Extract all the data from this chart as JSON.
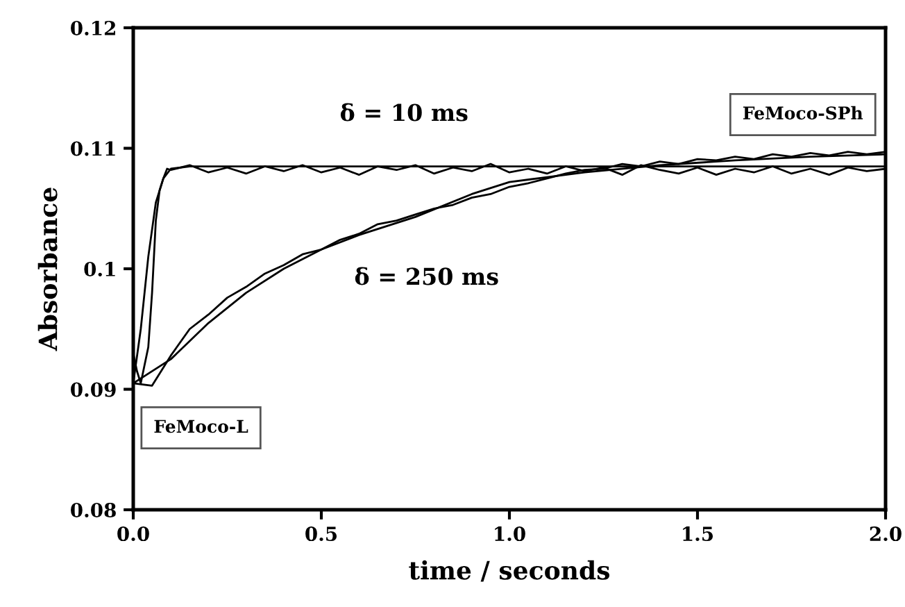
{
  "chart_data": {
    "type": "line",
    "xlabel": "time / seconds",
    "ylabel": "Absorbance",
    "xlim": [
      0,
      2
    ],
    "ylim": [
      0.08,
      0.12
    ],
    "xticks": [
      {
        "value": 0,
        "label": "0.0"
      },
      0.5,
      {
        "value": 1,
        "label": "1.0"
      },
      1.5,
      {
        "value": 2,
        "label": "2.0"
      }
    ],
    "yticks": [
      0.08,
      0.09,
      0.1,
      0.11,
      0.12
    ],
    "grid": false,
    "legend": false,
    "marker": "none",
    "line_style": "solid",
    "series": [
      {
        "color": "#000000",
        "x": [
          0,
          0.01,
          0.02,
          0.03,
          0.04,
          0.05,
          0.06,
          0.07,
          0.08,
          0.09,
          0.1,
          0.15,
          0.2,
          0.25,
          0.3,
          0.35,
          0.4,
          0.45,
          0.5,
          0.55,
          0.6,
          0.65,
          0.7,
          0.75,
          0.8,
          0.85,
          0.9,
          0.95,
          1.0,
          1.05,
          1.1,
          1.15,
          1.2,
          1.25,
          1.3,
          1.35,
          1.4,
          1.45,
          1.5,
          1.55,
          1.6,
          1.65,
          1.7,
          1.75,
          1.8,
          1.85,
          1.9,
          1.95,
          2.0
        ],
        "values": [
          0.093,
          0.0915,
          0.0905,
          0.092,
          0.0935,
          0.098,
          0.104,
          0.1065,
          0.1075,
          0.1083,
          0.1082,
          0.1086,
          0.108,
          0.1084,
          0.1079,
          0.1085,
          0.1081,
          0.1086,
          0.108,
          0.1084,
          0.1078,
          0.1085,
          0.1082,
          0.1086,
          0.1079,
          0.1084,
          0.1081,
          0.1087,
          0.108,
          0.1083,
          0.1079,
          0.1085,
          0.1081,
          0.1084,
          0.1078,
          0.1086,
          0.1082,
          0.1079,
          0.1084,
          0.1078,
          0.1083,
          0.108,
          0.1085,
          0.1079,
          0.1083,
          0.1078,
          0.1084,
          0.1081,
          0.1083
        ]
      },
      {
        "color": "#000000",
        "x": [
          0,
          0.02,
          0.04,
          0.06,
          0.08,
          0.1,
          0.15,
          2.0
        ],
        "values": [
          0.0905,
          0.095,
          0.101,
          0.1055,
          0.1075,
          0.1083,
          0.1085,
          0.1085
        ]
      },
      {
        "color": "#000000",
        "x": [
          0,
          0.05,
          0.1,
          0.15,
          0.2,
          0.25,
          0.3,
          0.35,
          0.4,
          0.45,
          0.5,
          0.55,
          0.6,
          0.65,
          0.7,
          0.75,
          0.8,
          0.85,
          0.9,
          0.95,
          1.0,
          1.05,
          1.1,
          1.15,
          1.2,
          1.25,
          1.3,
          1.35,
          1.4,
          1.45,
          1.5,
          1.55,
          1.6,
          1.65,
          1.7,
          1.75,
          1.8,
          1.85,
          1.9,
          1.95,
          2.0
        ],
        "values": [
          0.0905,
          0.0903,
          0.0928,
          0.095,
          0.0962,
          0.0976,
          0.0985,
          0.0996,
          0.1003,
          0.1012,
          0.1016,
          0.1024,
          0.1029,
          0.1037,
          0.104,
          0.1045,
          0.105,
          0.1053,
          0.1059,
          0.1062,
          0.1068,
          0.1071,
          0.1075,
          0.1079,
          0.1082,
          0.1083,
          0.1087,
          0.1085,
          0.1089,
          0.1087,
          0.1091,
          0.109,
          0.1093,
          0.1091,
          0.1095,
          0.1093,
          0.1096,
          0.1094,
          0.1097,
          0.1095,
          0.1097
        ]
      },
      {
        "color": "#000000",
        "x": [
          0,
          0.1,
          0.2,
          0.3,
          0.4,
          0.5,
          0.6,
          0.75,
          0.9,
          1.0,
          1.2,
          1.4,
          1.6,
          1.8,
          2.0
        ],
        "values": [
          0.0905,
          0.0925,
          0.0955,
          0.098,
          0.1,
          0.1016,
          0.1028,
          0.1043,
          0.1062,
          0.1072,
          0.108,
          0.1086,
          0.109,
          0.1093,
          0.1095
        ]
      }
    ],
    "annotations": [
      "δ = 10 ms",
      "δ = 250 ms",
      "FeMoco-L",
      "FeMoco-SPh"
    ]
  }
}
